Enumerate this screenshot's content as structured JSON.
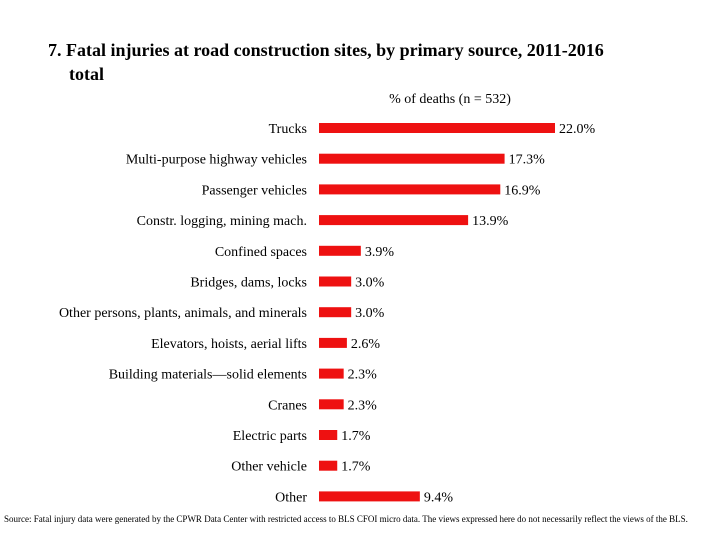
{
  "title_line1": "7. Fatal injuries at road construction sites, by primary source, 2011-2016",
  "title_line2": "total",
  "subtitle": "% of deaths (n = 532)",
  "source": "Source: Fatal injury data were generated by the CPWR Data Center with restricted access to BLS CFOI micro data. The views expressed here do not necessarily reflect the views of the BLS.",
  "colors": {
    "bar": "#ee1111",
    "text": "#000000"
  },
  "chart_data": {
    "type": "bar",
    "orientation": "horizontal",
    "title": "7. Fatal injuries at road construction sites, by primary source, 2011-2016 total",
    "xlabel": "% of deaths (n = 532)",
    "ylabel": "",
    "xlim": [
      0,
      22
    ],
    "grid": false,
    "legend": "none",
    "categories": [
      "Trucks",
      "Multi-purpose highway vehicles",
      "Passenger vehicles",
      "Constr. logging, mining mach.",
      "Confined spaces",
      "Bridges, dams, locks",
      "Other persons, plants, animals, and minerals",
      "Elevators, hoists, aerial lifts",
      "Building materials—solid elements",
      "Cranes",
      "Electric parts",
      "Other vehicle",
      "Other"
    ],
    "values": [
      22.0,
      17.3,
      16.9,
      13.9,
      3.9,
      3.0,
      3.0,
      2.6,
      2.3,
      2.3,
      1.7,
      1.7,
      9.4
    ],
    "value_labels": [
      "22.0%",
      "17.3%",
      "16.9%",
      "13.9%",
      "3.9%",
      "3.0%",
      "3.0%",
      "2.6%",
      "2.3%",
      "2.3%",
      "1.7%",
      "1.7%",
      "9.4%"
    ]
  }
}
